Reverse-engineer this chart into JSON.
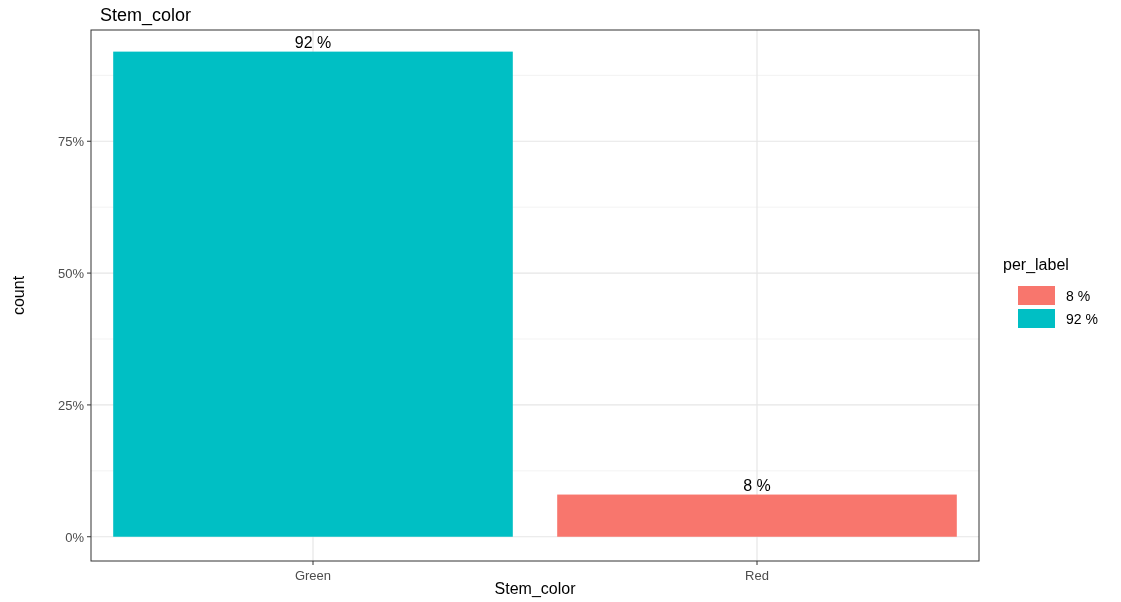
{
  "chart_data": {
    "type": "bar",
    "title": "Stem_color",
    "xlabel": "Stem_color",
    "ylabel": "count",
    "legend_title": "per_label",
    "categories": [
      "Green",
      "Red"
    ],
    "stacked": true,
    "series": [
      {
        "name": "8 %",
        "color": "#f8766d",
        "values": [
          null,
          8
        ],
        "value_labels": [
          null,
          "8 %"
        ]
      },
      {
        "name": "92 %",
        "color": "#00bfc4",
        "values": [
          92,
          null
        ],
        "value_labels": [
          "92 %",
          null
        ]
      }
    ],
    "ylim": [
      -4.6,
      96.1
    ],
    "yticks": [
      {
        "value": 0,
        "label": "0%"
      },
      {
        "value": 25,
        "label": "25%"
      },
      {
        "value": 50,
        "label": "50%"
      },
      {
        "value": 75,
        "label": "75%"
      }
    ],
    "grid": true,
    "legend": "right"
  }
}
